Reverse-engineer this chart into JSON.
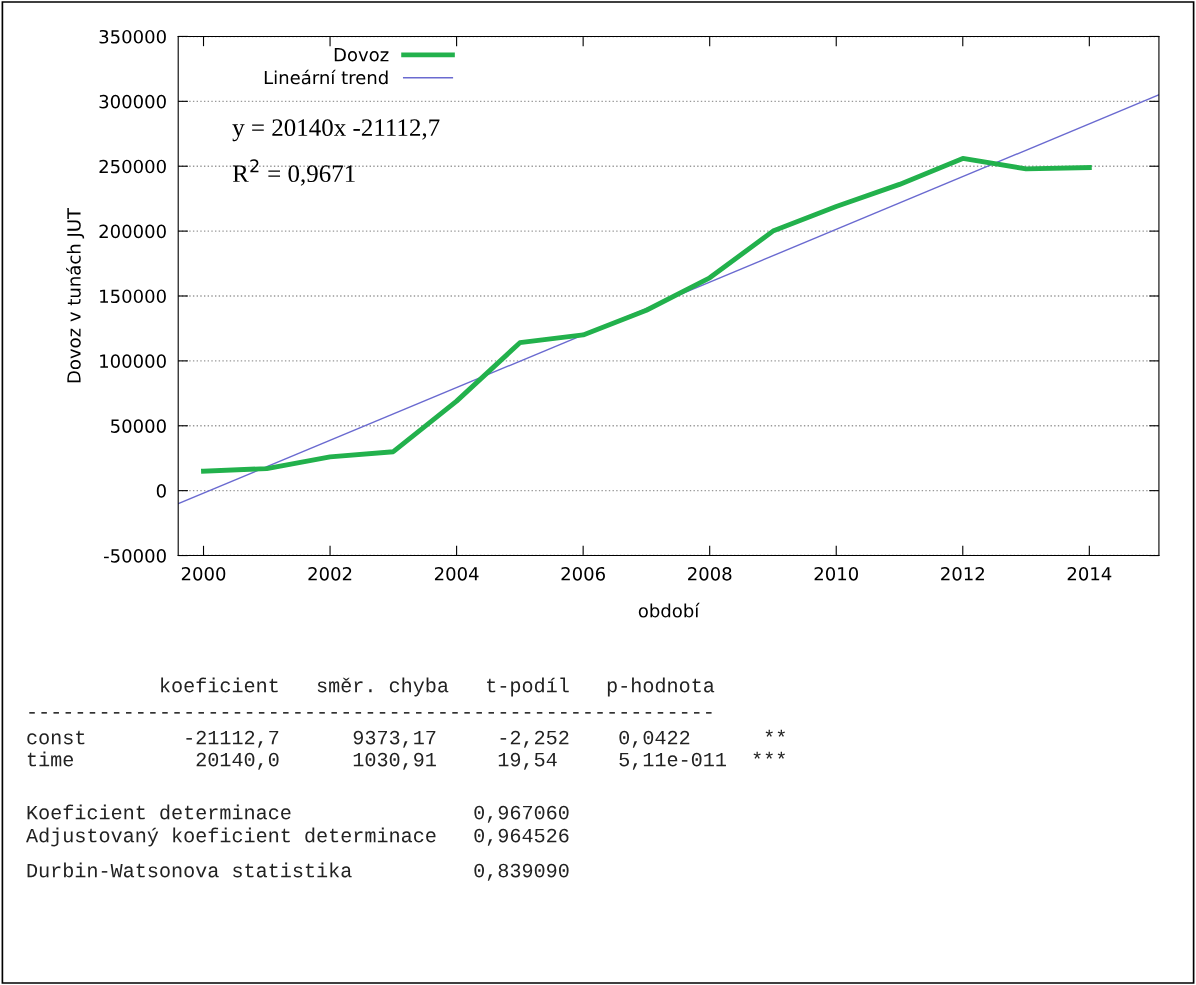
{
  "chart_data": {
    "type": "line",
    "xlabel": "období",
    "ylabel": "Dovoz v tunách JUT",
    "xlim": [
      1999.6,
      2015.1
    ],
    "xticks": [
      2000,
      2002,
      2004,
      2006,
      2008,
      2010,
      2012,
      2014
    ],
    "ylim": [
      -50000,
      350000
    ],
    "yticks": [
      -50000,
      0,
      50000,
      100000,
      150000,
      200000,
      250000,
      300000,
      350000
    ],
    "grid": "y",
    "legend": "top left",
    "line_style": "solid",
    "marker": "none",
    "series": [
      {
        "name": "Dovoz",
        "color": "#22b14c",
        "x": [
          2000,
          2001,
          2002,
          2003,
          2004,
          2005,
          2006,
          2007,
          2008,
          2009,
          2010,
          2011,
          2012,
          2013,
          2014
        ],
        "values": [
          15000,
          17000,
          26000,
          30000,
          69000,
          114000,
          120000,
          139000,
          164000,
          200000,
          219000,
          236000,
          256000,
          248000,
          249000
        ]
      },
      {
        "name": "Lineární trend",
        "color": "#6a6ad0",
        "x": [
          1999.6,
          2015.1
        ],
        "values": [
          -10000,
          305000
        ]
      }
    ],
    "annotations": [
      "y = 20140x -21112,7",
      "R$^{2}$ = 0,9671",
      "           koeficient   směr. chyba   t-podíl   p-hodnota",
      "---------------------------------------------------------",
      "const        -21112,7      9373,17     -2,252    0,0422      **",
      "time          20140,0      1030,91     19,54     5,11e-011  ***",
      "Koeficient determinace               0,967060",
      "Adjustovaný koeficient determinace   0,964526",
      "Durbin-Watsonova statistika          0,839090"
    ]
  }
}
